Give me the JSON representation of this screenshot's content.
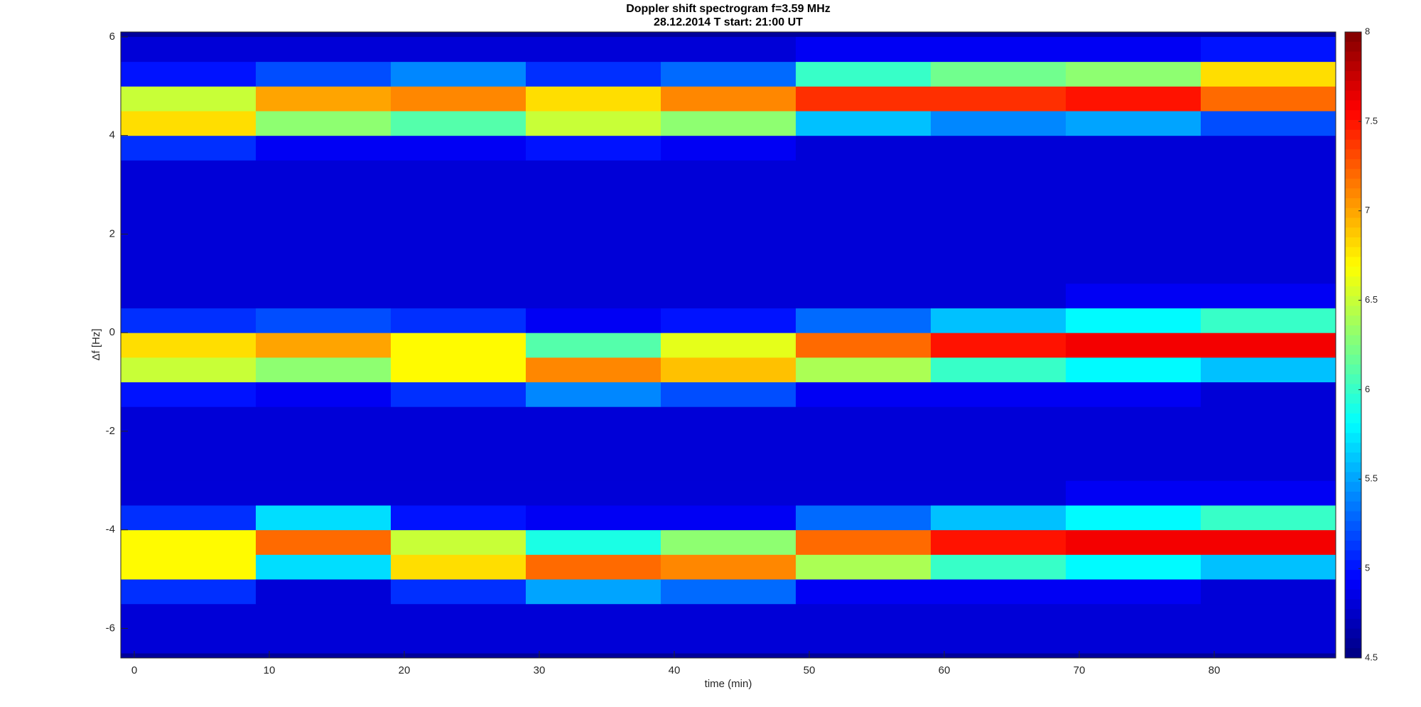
{
  "chart_data": {
    "type": "heatmap",
    "title": "Doppler shift spectrogram f=3.59 MHz",
    "subtitle": "28.12.2014   T start: 21:00 UT",
    "x_label": "time (min)",
    "y_label": "Δf [Hz]",
    "colormap": "jet",
    "x": [
      -1,
      9,
      19,
      29,
      39,
      49,
      59,
      69,
      79,
      89
    ],
    "y": [
      -6.5,
      -6,
      -5.5,
      -5,
      -4.5,
      -4,
      -3.5,
      -3,
      -2.5,
      -2,
      -1.5,
      -1,
      -0.5,
      0,
      0.5,
      1,
      1.5,
      2,
      2.5,
      3,
      3.5,
      4,
      4.5,
      5,
      5.5,
      6
    ],
    "z": [
      [
        4.8,
        4.8,
        4.8,
        4.8,
        4.8,
        4.8,
        4.8,
        4.8,
        4.8
      ],
      [
        4.8,
        4.8,
        4.8,
        4.8,
        4.8,
        4.8,
        4.8,
        4.8,
        4.8
      ],
      [
        5.1,
        4.8,
        5.1,
        5.5,
        5.3,
        4.9,
        4.9,
        4.9,
        4.8
      ],
      [
        6.7,
        5.7,
        6.8,
        7.2,
        7.1,
        6.4,
        6.0,
        5.8,
        5.6
      ],
      [
        6.7,
        7.2,
        6.5,
        5.9,
        6.3,
        7.2,
        7.5,
        7.6,
        7.6
      ],
      [
        5.1,
        5.7,
        5.0,
        4.9,
        4.9,
        5.3,
        5.6,
        5.8,
        6.0
      ],
      [
        4.8,
        4.8,
        4.8,
        4.8,
        4.8,
        4.8,
        4.8,
        4.9,
        4.9
      ],
      [
        4.8,
        4.8,
        4.8,
        4.8,
        4.8,
        4.8,
        4.8,
        4.8,
        4.8
      ],
      [
        4.8,
        4.8,
        4.8,
        4.8,
        4.8,
        4.8,
        4.8,
        4.8,
        4.8
      ],
      [
        4.8,
        4.8,
        4.8,
        4.8,
        4.8,
        4.8,
        4.8,
        4.8,
        4.8
      ],
      [
        5.0,
        4.9,
        5.1,
        5.4,
        5.2,
        4.9,
        4.9,
        4.9,
        4.8
      ],
      [
        6.5,
        6.3,
        6.7,
        7.1,
        6.9,
        6.4,
        6.0,
        5.8,
        5.6
      ],
      [
        6.8,
        7.0,
        6.7,
        6.1,
        6.6,
        7.2,
        7.5,
        7.6,
        7.6
      ],
      [
        5.1,
        5.2,
        5.1,
        4.9,
        5.0,
        5.3,
        5.6,
        5.8,
        6.0
      ],
      [
        4.8,
        4.8,
        4.8,
        4.8,
        4.8,
        4.8,
        4.8,
        4.9,
        4.9
      ],
      [
        4.8,
        4.8,
        4.8,
        4.8,
        4.8,
        4.8,
        4.8,
        4.8,
        4.8
      ],
      [
        4.8,
        4.8,
        4.8,
        4.8,
        4.8,
        4.8,
        4.8,
        4.8,
        4.8
      ],
      [
        4.8,
        4.8,
        4.8,
        4.8,
        4.8,
        4.8,
        4.8,
        4.8,
        4.8
      ],
      [
        4.8,
        4.8,
        4.8,
        4.8,
        4.8,
        4.8,
        4.8,
        4.8,
        4.8
      ],
      [
        4.8,
        4.8,
        4.8,
        4.8,
        4.8,
        4.8,
        4.8,
        4.8,
        4.8
      ],
      [
        5.1,
        4.9,
        4.9,
        5.0,
        4.9,
        4.8,
        4.8,
        4.8,
        4.8
      ],
      [
        6.8,
        6.3,
        6.1,
        6.5,
        6.3,
        5.6,
        5.4,
        5.5,
        5.2
      ],
      [
        6.5,
        7.0,
        7.1,
        6.8,
        7.1,
        7.4,
        7.4,
        7.5,
        7.2
      ],
      [
        5.0,
        5.2,
        5.4,
        5.1,
        5.3,
        6.0,
        6.2,
        6.3,
        6.8
      ],
      [
        4.8,
        4.8,
        4.8,
        4.8,
        4.8,
        4.9,
        4.9,
        4.9,
        5.0
      ]
    ],
    "xlim": [
      -1,
      89
    ],
    "xticks": [
      0,
      10,
      20,
      30,
      40,
      50,
      60,
      70,
      80
    ],
    "ylim": [
      -6.6,
      6.1
    ],
    "yticks": [
      -6,
      -4,
      -2,
      0,
      2,
      4,
      6
    ],
    "clim": [
      4.5,
      8
    ],
    "cticks": [
      4.5,
      5,
      5.5,
      6,
      6.5,
      7,
      7.5,
      8
    ]
  }
}
